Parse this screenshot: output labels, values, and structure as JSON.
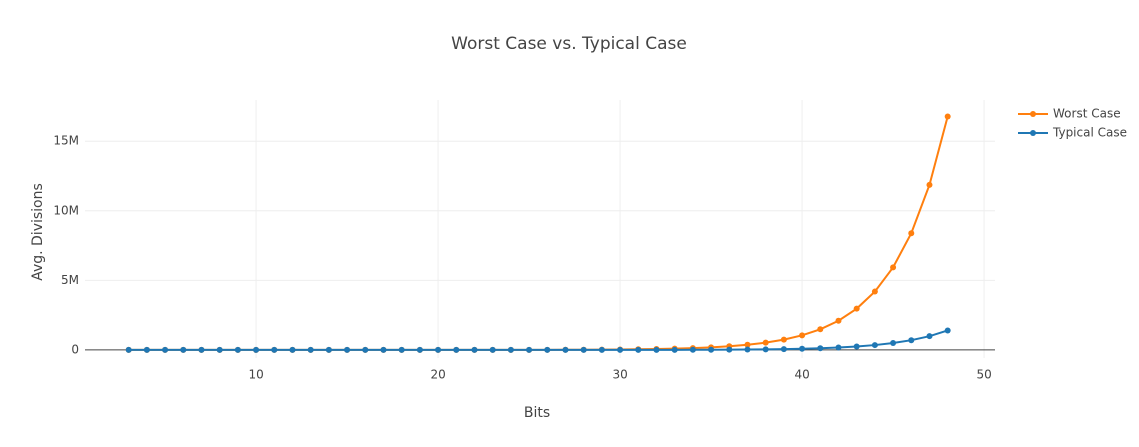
{
  "chart_data": {
    "type": "line",
    "title": "Worst Case vs. Typical Case",
    "x_label": "Bits",
    "y_label": "Avg. Divisions",
    "x": [
      3,
      4,
      5,
      6,
      7,
      8,
      9,
      10,
      11,
      12,
      13,
      14,
      15,
      16,
      17,
      18,
      19,
      20,
      21,
      22,
      23,
      24,
      25,
      26,
      27,
      28,
      29,
      30,
      31,
      32,
      33,
      34,
      35,
      36,
      37,
      38,
      39,
      40,
      41,
      42,
      43,
      44,
      45,
      46,
      47,
      48
    ],
    "series": [
      {
        "name": "Worst Case",
        "color": "#ff7f0e",
        "values": [
          2.83,
          4,
          5.66,
          8,
          11.3,
          16,
          22.6,
          32,
          45,
          64,
          91,
          128,
          181,
          256,
          362,
          512,
          724,
          1024,
          1448,
          2048,
          2896,
          4096,
          5793,
          8192,
          11585,
          16384,
          23170,
          32768,
          46341,
          65536,
          92682,
          131072,
          185364,
          262144,
          370728,
          524288,
          741455,
          1048576,
          1482910,
          2097152,
          2965821,
          4194304,
          5931642,
          8388608,
          11863283,
          16777216
        ]
      },
      {
        "name": "Typical Case",
        "color": "#1f77b4",
        "values": [
          1,
          1,
          1,
          1,
          1,
          2,
          2,
          3,
          4,
          5,
          8,
          11,
          15,
          21,
          30,
          43,
          60,
          85,
          121,
          171,
          241,
          341,
          483,
          683,
          965,
          1365,
          1931,
          2731,
          3862,
          5461,
          7724,
          10923,
          15447,
          21845,
          30894,
          43691,
          61788,
          87381,
          123576,
          174763,
          247152,
          349525,
          494304,
          699051,
          988607,
          1398101
        ]
      }
    ],
    "xlim": [
      0.6,
      50.6
    ],
    "xticks": [
      10,
      20,
      30,
      40,
      50
    ],
    "ylim": [
      -580000,
      17960000
    ],
    "yticks": [
      0,
      {
        "value": 5000000,
        "label": "5M"
      },
      {
        "value": 10000000,
        "label": "10M"
      },
      {
        "value": 15000000,
        "label": "15M"
      }
    ],
    "grid": true,
    "legend": "upper right"
  }
}
